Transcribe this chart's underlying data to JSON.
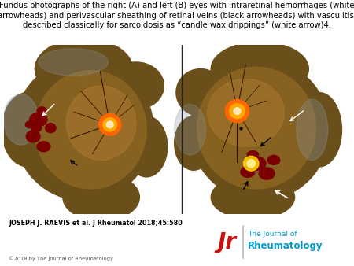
{
  "title_line1": "Fundus photographs of the right (A) and left (B) eyes with intraretinal hemorrhages (white",
  "title_line2": "arrowheads) and perivascular sheathing of retinal veins (black arrowheads) with vasculitis,",
  "title_line3": "described classically for sarcoidosis as “candle wax drippings” (white arrow)4.",
  "author_text": "JOSEPH J. RAEVIS et al. J Rheumatol 2018;45:580",
  "copyright_text": "©2018 by The Journal of Rheumatology",
  "background_color": "#ffffff",
  "title_fontsize": 7.2,
  "author_fontsize": 5.8,
  "copyright_fontsize": 4.8,
  "logo_text1": "The Journal of",
  "logo_text2": "Rheumatology",
  "logo_color": "#0099cc",
  "logo_r_color": "#cc1111",
  "fundus_bg": "#000000",
  "retina_outer_color": "#6B4F1A",
  "retina_mid_color": "#8B6520",
  "retina_light_color": "#A87830",
  "disc_color": "#FF6600",
  "disc_inner_color": "#FFAA00",
  "hemorrhage_color": "#7B0000",
  "vessel_color": "#2A1000"
}
